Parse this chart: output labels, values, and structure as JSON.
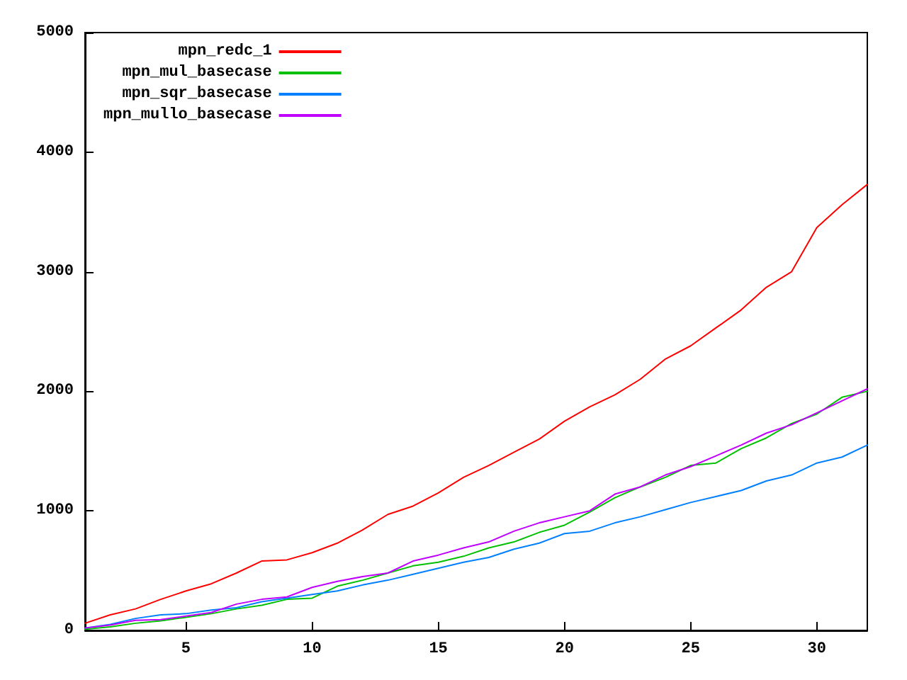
{
  "chart_data": {
    "type": "line",
    "x": [
      1,
      2,
      3,
      4,
      5,
      6,
      7,
      8,
      9,
      10,
      11,
      12,
      13,
      14,
      15,
      16,
      17,
      18,
      19,
      20,
      21,
      22,
      23,
      24,
      25,
      26,
      27,
      28,
      29,
      30,
      31,
      32
    ],
    "series": [
      {
        "name": "mpn_redc_1",
        "color": "#ff0000",
        "values": [
          60,
          130,
          180,
          260,
          330,
          390,
          480,
          580,
          590,
          650,
          730,
          840,
          970,
          1040,
          1150,
          1280,
          1380,
          1490,
          1600,
          1750,
          1870,
          1970,
          2100,
          2270,
          2380,
          2530,
          2680,
          2870,
          3000,
          3370,
          3560,
          3730
        ]
      },
      {
        "name": "mpn_mul_basecase",
        "color": "#00c000",
        "values": [
          10,
          30,
          60,
          80,
          110,
          140,
          180,
          210,
          260,
          270,
          370,
          420,
          480,
          540,
          570,
          620,
          690,
          740,
          820,
          880,
          990,
          1110,
          1200,
          1280,
          1380,
          1400,
          1520,
          1610,
          1730,
          1810,
          1950,
          2000
        ]
      },
      {
        "name": "mpn_sqr_basecase",
        "color": "#0080ff",
        "values": [
          20,
          50,
          100,
          130,
          140,
          170,
          190,
          240,
          270,
          300,
          330,
          380,
          420,
          470,
          520,
          570,
          610,
          680,
          730,
          810,
          830,
          900,
          950,
          1010,
          1070,
          1120,
          1170,
          1250,
          1300,
          1400,
          1450,
          1550
        ]
      },
      {
        "name": "mpn_mullo_basecase",
        "color": "#c000ff",
        "values": [
          20,
          45,
          85,
          90,
          120,
          150,
          220,
          260,
          280,
          360,
          410,
          450,
          480,
          580,
          630,
          690,
          740,
          830,
          900,
          950,
          1000,
          1140,
          1200,
          1300,
          1370,
          1460,
          1550,
          1650,
          1720,
          1820,
          1920,
          2020
        ]
      }
    ],
    "xlim": [
      1,
      32
    ],
    "xticks": [
      5,
      10,
      15,
      20,
      25,
      30
    ],
    "ylim": [
      0,
      5000
    ],
    "yticks": [
      0,
      1000,
      2000,
      3000,
      4000,
      5000
    ],
    "grid": false,
    "legend": "top left",
    "marker": "none",
    "line_style": "solid"
  }
}
